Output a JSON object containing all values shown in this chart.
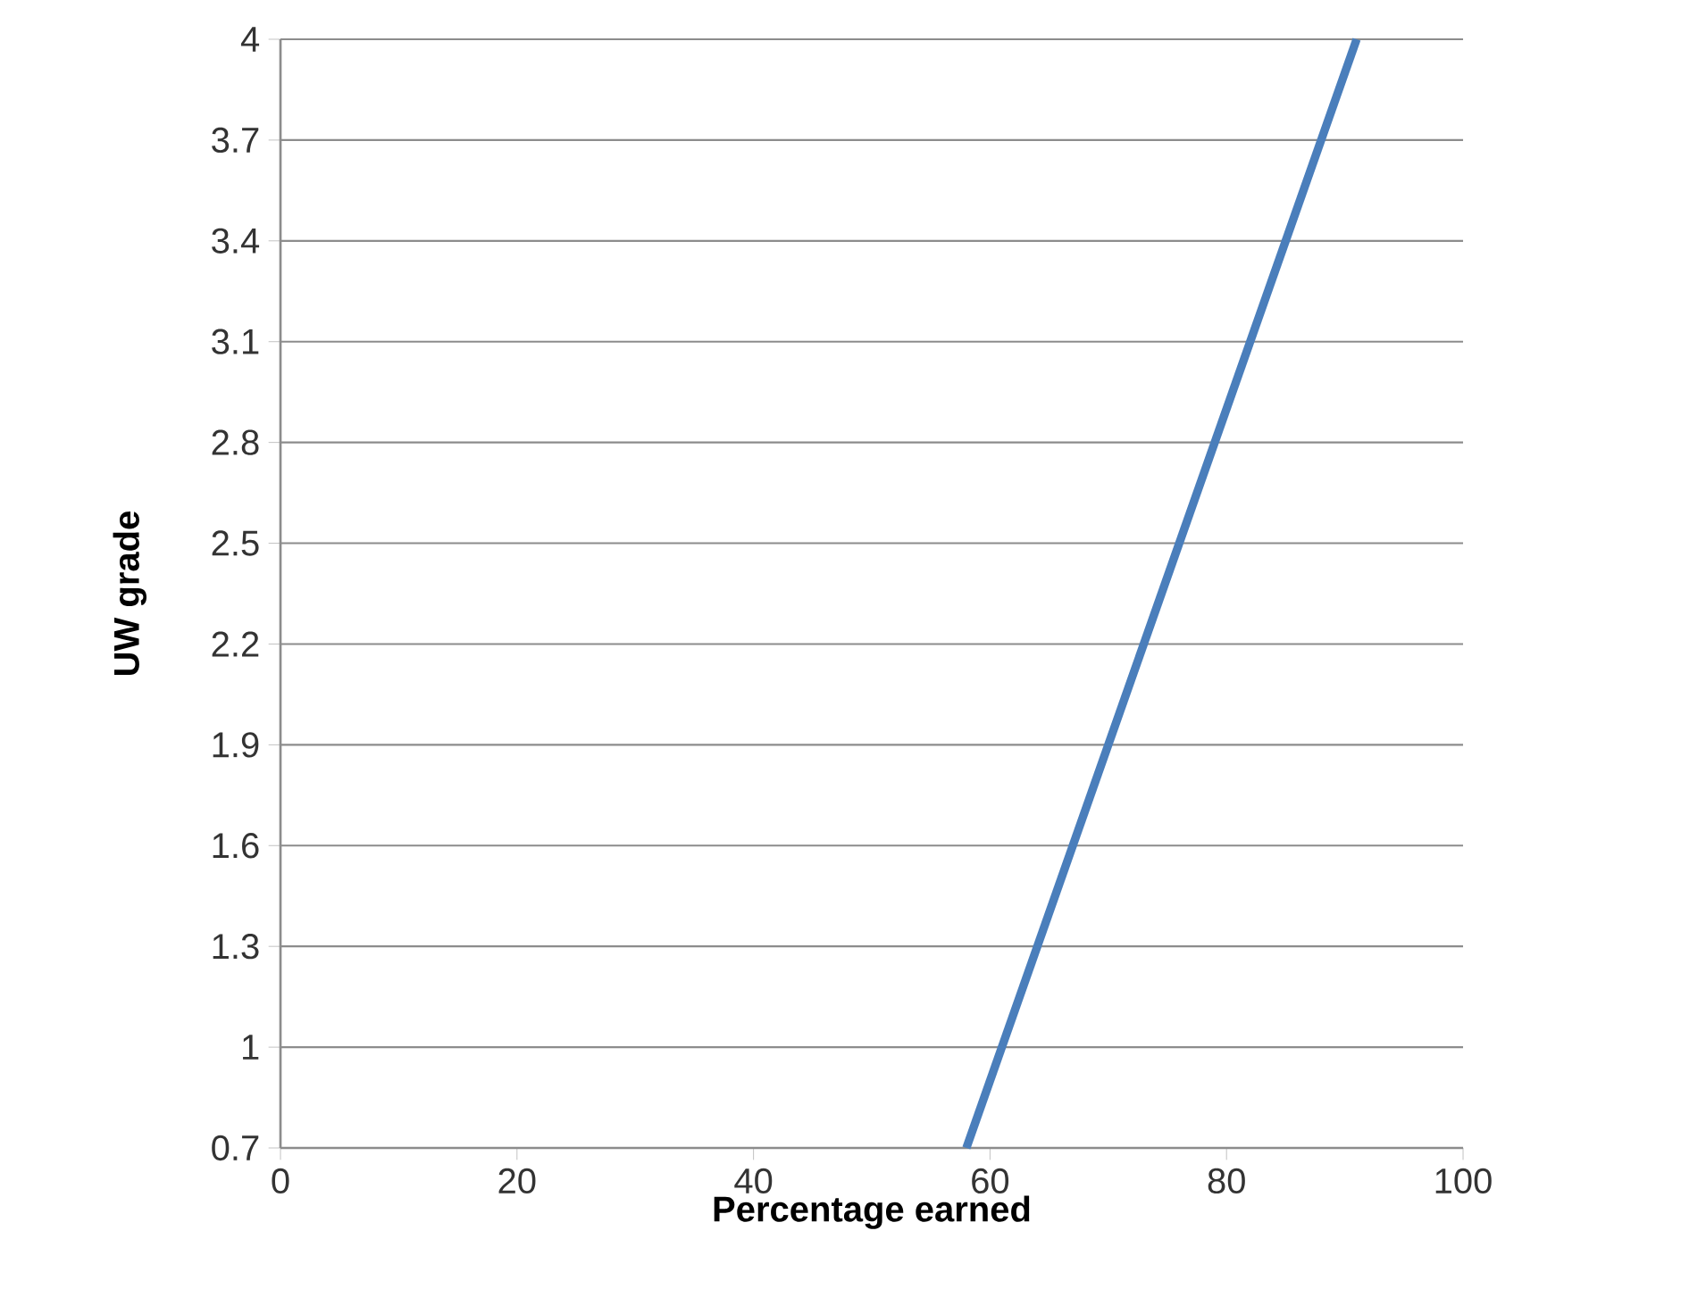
{
  "chart_data": {
    "type": "line",
    "xlabel": "Percentage earned",
    "ylabel": "UW grade",
    "x": [
      58,
      91
    ],
    "series": [
      {
        "color": "#4a7ebb",
        "values": [
          0.7,
          4
        ]
      }
    ],
    "xlim": [
      0,
      100
    ],
    "xticks": [
      0,
      20,
      40,
      60,
      80,
      100
    ],
    "ylim": [
      0.7,
      4
    ],
    "yticks": [
      0.7,
      1,
      1.3,
      1.6,
      1.9,
      2.2,
      2.5,
      2.8,
      3.1,
      3.4,
      3.7,
      4
    ],
    "grid": "y",
    "line_style": "solid"
  }
}
